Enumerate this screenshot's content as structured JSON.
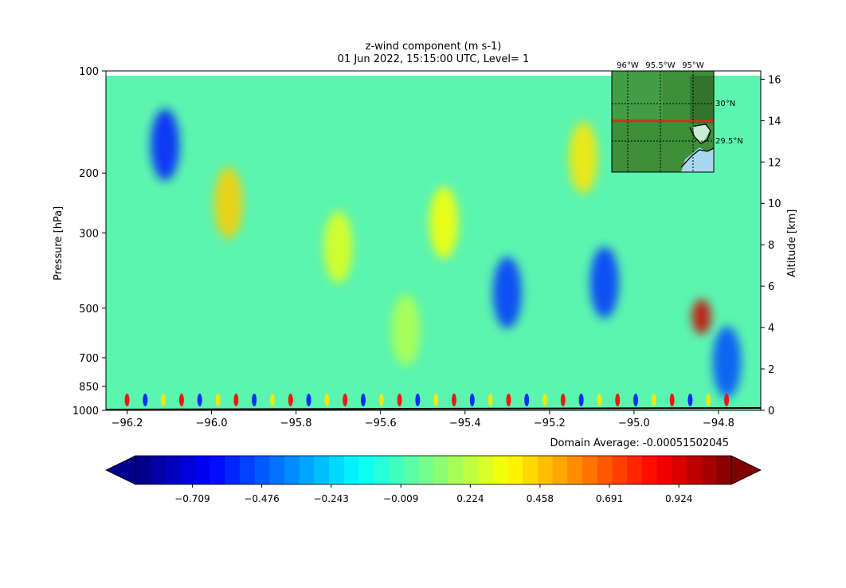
{
  "chart_data": {
    "type": "heatmap",
    "title": "z-wind component (m s-1)",
    "subtitle": "01 Jun 2022, 15:15:00 UTC, Level= 1",
    "xlabel": "",
    "ylabel": "Pressure [hPa]",
    "y2label": "Altitude [km]",
    "xlim": [
      -96.25,
      -94.7
    ],
    "x_ticks": [
      -96.2,
      -96.0,
      -95.8,
      -95.6,
      -95.4,
      -95.2,
      -95.0,
      -94.8
    ],
    "x_tick_labels": [
      "−96.2",
      "−96.0",
      "−95.8",
      "−95.6",
      "−95.4",
      "−95.2",
      "−95.0",
      "−94.8"
    ],
    "y_ticks_hpa": [
      100,
      200,
      300,
      500,
      700,
      850,
      1000
    ],
    "y_scale": "log",
    "y_inverted": true,
    "y2_ticks_km": [
      0,
      2,
      4,
      6,
      8,
      10,
      12,
      14,
      16
    ],
    "colormap": "jet",
    "colorbar": {
      "min": -0.9,
      "max": 1.1,
      "extend": "both",
      "tick_values": [
        -0.709,
        -0.476,
        -0.243,
        -0.009,
        0.224,
        0.458,
        0.691,
        0.924
      ],
      "tick_labels": [
        "−0.709",
        "−0.476",
        "−0.243",
        "−0.009",
        "0.224",
        "0.458",
        "0.691",
        "0.924"
      ]
    },
    "domain_average_label": "Domain Average: -0.00051502045",
    "features": [
      {
        "lon": -96.11,
        "hpa": 165,
        "value": -0.6
      },
      {
        "lon": -95.96,
        "hpa": 245,
        "value": 0.45
      },
      {
        "lon": -95.54,
        "hpa": 580,
        "value": 0.2
      },
      {
        "lon": -95.3,
        "hpa": 450,
        "value": -0.55
      },
      {
        "lon": -95.07,
        "hpa": 420,
        "value": -0.55
      },
      {
        "lon": -94.84,
        "hpa": 530,
        "value": 0.95
      },
      {
        "lon": -94.78,
        "hpa": 720,
        "value": -0.5
      },
      {
        "lon": -95.7,
        "hpa": 330,
        "value": 0.3
      },
      {
        "lon": -95.45,
        "hpa": 280,
        "value": 0.35
      },
      {
        "lon": -95.12,
        "hpa": 180,
        "value": 0.4
      }
    ],
    "inset_map": {
      "lon_labels": [
        "96°W",
        "95.5°W",
        "95°W"
      ],
      "lat_labels": [
        "30°N",
        "29.5°N"
      ],
      "section_line_color": "#e82218"
    }
  }
}
